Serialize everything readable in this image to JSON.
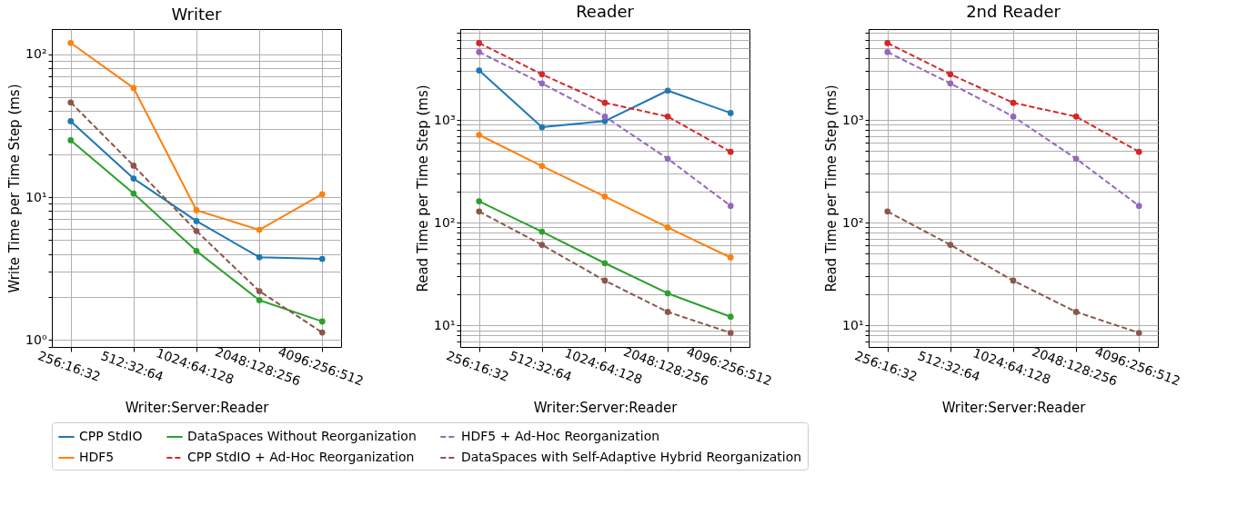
{
  "chart_data": [
    {
      "type": "line",
      "title": "Writer",
      "xlabel": "Writer:Server:Reader",
      "ylabel": "Write Time per Time Step (ms)",
      "categories": [
        "256:16:32",
        "512:32:64",
        "1024:64:128",
        "2048:128:256",
        "4096:256:512"
      ],
      "series": [
        {
          "name": "CPP StdIO",
          "color": "#1f77b4",
          "line_style": "solid",
          "values": [
            34,
            13.5,
            6.8,
            3.8,
            3.7
          ]
        },
        {
          "name": "HDF5",
          "color": "#ff7f0e",
          "line_style": "solid",
          "values": [
            120,
            58,
            8.1,
            5.9,
            10.5
          ]
        },
        {
          "name": "DataSpaces Without Reorganization",
          "color": "#2ca02c",
          "line_style": "solid",
          "values": [
            25,
            10.6,
            4.2,
            1.9,
            1.35
          ]
        },
        {
          "name": "DataSpaces with Self-Adaptive Hybrid Reorganization",
          "color": "#8c564b",
          "line_style": "dashed",
          "values": [
            46,
            16.6,
            5.8,
            2.2,
            1.13
          ]
        }
      ],
      "ylim": [
        0.895,
        150
      ],
      "yticks": [
        {
          "value": 0.9,
          "label": null
        },
        {
          "value": 1,
          "label": "10⁰"
        },
        {
          "value": 2,
          "label": null
        },
        {
          "value": 3,
          "label": null
        },
        {
          "value": 4,
          "label": null
        },
        {
          "value": 5,
          "label": null
        },
        {
          "value": 6,
          "label": null
        },
        {
          "value": 7,
          "label": null
        },
        {
          "value": 8,
          "label": null
        },
        {
          "value": 9,
          "label": null
        },
        {
          "value": 10,
          "label": "10¹"
        },
        {
          "value": 20,
          "label": null
        },
        {
          "value": 30,
          "label": null
        },
        {
          "value": 40,
          "label": null
        },
        {
          "value": 50,
          "label": null
        },
        {
          "value": 60,
          "label": null
        },
        {
          "value": 70,
          "label": null
        },
        {
          "value": 80,
          "label": null
        },
        {
          "value": 90,
          "label": null
        },
        {
          "value": 100,
          "label": "10²"
        }
      ],
      "log": true,
      "grid": true,
      "marker": "circle",
      "legend": "bottom"
    },
    {
      "type": "line",
      "title": "Reader",
      "xlabel": "Writer:Server:Reader",
      "ylabel": "Read Time per Time Step (ms)",
      "categories": [
        "256:16:32",
        "512:32:64",
        "1024:64:128",
        "2048:128:256",
        "4096:256:512"
      ],
      "series": [
        {
          "name": "CPP StdIO",
          "color": "#1f77b4",
          "line_style": "solid",
          "values": [
            3030,
            850,
            975,
            1930,
            1170
          ]
        },
        {
          "name": "HDF5",
          "color": "#ff7f0e",
          "line_style": "solid",
          "values": [
            716,
            356,
            180,
            90,
            46
          ]
        },
        {
          "name": "DataSpaces Without Reorganization",
          "color": "#2ca02c",
          "line_style": "solid",
          "values": [
            162,
            82,
            40.5,
            20.6,
            12.2
          ]
        },
        {
          "name": "CPP StdIO + Ad-Hoc Reorganization",
          "color": "#d62728",
          "line_style": "dashed",
          "values": [
            5600,
            2780,
            1470,
            1080,
            490
          ]
        },
        {
          "name": "HDF5 + Ad-Hoc Reorganization",
          "color": "#9467bd",
          "line_style": "dashed",
          "values": [
            4580,
            2270,
            1080,
            420,
            146
          ]
        },
        {
          "name": "DataSpaces with Self-Adaptive Hybrid Reorganization",
          "color": "#8c564b",
          "line_style": "dashed",
          "values": [
            129,
            61,
            27.4,
            13.6,
            8.5
          ]
        }
      ],
      "ylim": [
        6.2,
        7660
      ],
      "yticks": [
        {
          "value": 7,
          "label": null
        },
        {
          "value": 8,
          "label": null
        },
        {
          "value": 9,
          "label": null
        },
        {
          "value": 10,
          "label": "10¹"
        },
        {
          "value": 20,
          "label": null
        },
        {
          "value": 30,
          "label": null
        },
        {
          "value": 40,
          "label": null
        },
        {
          "value": 50,
          "label": null
        },
        {
          "value": 60,
          "label": null
        },
        {
          "value": 70,
          "label": null
        },
        {
          "value": 80,
          "label": null
        },
        {
          "value": 90,
          "label": null
        },
        {
          "value": 100,
          "label": "10²"
        },
        {
          "value": 200,
          "label": null
        },
        {
          "value": 300,
          "label": null
        },
        {
          "value": 400,
          "label": null
        },
        {
          "value": 500,
          "label": null
        },
        {
          "value": 600,
          "label": null
        },
        {
          "value": 700,
          "label": null
        },
        {
          "value": 800,
          "label": null
        },
        {
          "value": 900,
          "label": null
        },
        {
          "value": 1000,
          "label": "10³"
        },
        {
          "value": 2000,
          "label": null
        },
        {
          "value": 3000,
          "label": null
        },
        {
          "value": 4000,
          "label": null
        },
        {
          "value": 5000,
          "label": null
        },
        {
          "value": 6000,
          "label": null
        },
        {
          "value": 7000,
          "label": null
        }
      ],
      "log": true,
      "grid": true,
      "marker": "circle",
      "legend": "bottom"
    },
    {
      "type": "line",
      "title": "2nd Reader",
      "xlabel": "Writer:Server:Reader",
      "ylabel": "Read Time per Time Step (ms)",
      "categories": [
        "256:16:32",
        "512:32:64",
        "1024:64:128",
        "2048:128:256",
        "4096:256:512"
      ],
      "series": [
        {
          "name": "CPP StdIO + Ad-Hoc Reorganization",
          "color": "#d62728",
          "line_style": "dashed",
          "values": [
            5600,
            2780,
            1470,
            1080,
            490
          ]
        },
        {
          "name": "HDF5 + Ad-Hoc Reorganization",
          "color": "#9467bd",
          "line_style": "dashed",
          "values": [
            4580,
            2270,
            1080,
            420,
            146
          ]
        },
        {
          "name": "DataSpaces with Self-Adaptive Hybrid Reorganization",
          "color": "#8c564b",
          "line_style": "dashed",
          "values": [
            129,
            61,
            27.4,
            13.6,
            8.5
          ]
        }
      ],
      "ylim": [
        6.2,
        7660
      ],
      "yticks": [
        {
          "value": 7,
          "label": null
        },
        {
          "value": 8,
          "label": null
        },
        {
          "value": 9,
          "label": null
        },
        {
          "value": 10,
          "label": "10¹"
        },
        {
          "value": 20,
          "label": null
        },
        {
          "value": 30,
          "label": null
        },
        {
          "value": 40,
          "label": null
        },
        {
          "value": 50,
          "label": null
        },
        {
          "value": 60,
          "label": null
        },
        {
          "value": 70,
          "label": null
        },
        {
          "value": 80,
          "label": null
        },
        {
          "value": 90,
          "label": null
        },
        {
          "value": 100,
          "label": "10²"
        },
        {
          "value": 200,
          "label": null
        },
        {
          "value": 300,
          "label": null
        },
        {
          "value": 400,
          "label": null
        },
        {
          "value": 500,
          "label": null
        },
        {
          "value": 600,
          "label": null
        },
        {
          "value": 700,
          "label": null
        },
        {
          "value": 800,
          "label": null
        },
        {
          "value": 900,
          "label": null
        },
        {
          "value": 1000,
          "label": "10³"
        },
        {
          "value": 2000,
          "label": null
        },
        {
          "value": 3000,
          "label": null
        },
        {
          "value": 4000,
          "label": null
        },
        {
          "value": 5000,
          "label": null
        },
        {
          "value": 6000,
          "label": null
        },
        {
          "value": 7000,
          "label": null
        }
      ],
      "log": true,
      "grid": true,
      "marker": "circle",
      "legend": "bottom"
    }
  ]
}
